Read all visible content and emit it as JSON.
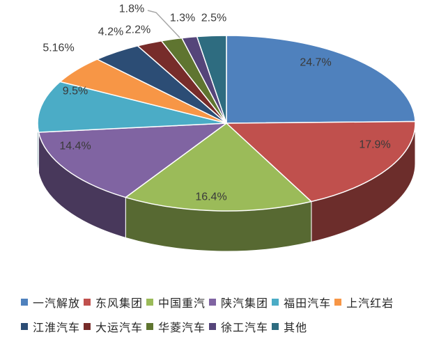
{
  "chart_data": {
    "type": "pie",
    "title": "",
    "effect": "3d",
    "start_angle": 0,
    "direction": "clockwise",
    "legend_position": "bottom",
    "categories": [
      "一汽解放",
      "东风集团",
      "中国重汽",
      "陕汽集团",
      "福田汽车",
      "上汽红岩",
      "江淮汽车",
      "大运汽车",
      "华菱汽车",
      "徐工汽车",
      "其他"
    ],
    "values": [
      24.7,
      17.9,
      16.4,
      14.4,
      9.5,
      5.16,
      4.2,
      2.2,
      1.8,
      1.3,
      2.5
    ],
    "labels": [
      "24.7%",
      "17.9%",
      "16.4%",
      "14.4%",
      "9.5%",
      "5.16%",
      "4.2%",
      "2.2%",
      "1.8%",
      "1.3%",
      "2.5%"
    ],
    "colors": [
      "#4F81BD",
      "#C0504D",
      "#9BBB59",
      "#8064A2",
      "#4BACC6",
      "#F79646",
      "#2C4D75",
      "#772C2A",
      "#5F7530",
      "#55457A",
      "#2E6C80"
    ],
    "legend_rows": [
      [
        0,
        1,
        2,
        3,
        4,
        5
      ],
      [
        6,
        7,
        8,
        9,
        10
      ]
    ]
  }
}
